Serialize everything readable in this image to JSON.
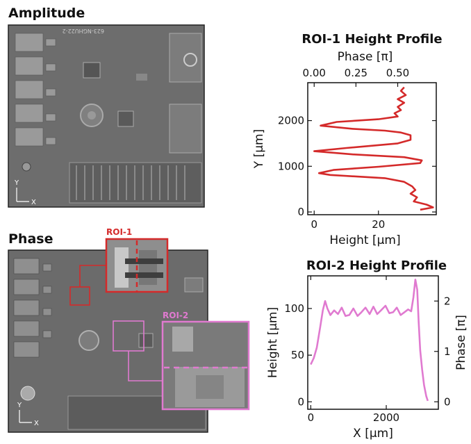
{
  "panels": {
    "amplitude_title": "Amplitude",
    "phase_title": "Phase",
    "axis_y": "Y",
    "axis_x": "X",
    "amplitude_chip_text": "623-NGHU22-2",
    "roi1_label": "ROI-1",
    "roi2_label": "ROI-2"
  },
  "colors": {
    "roi1": "#d42a2a",
    "roi2": "#e07ad0"
  },
  "chart_data": [
    {
      "type": "line",
      "title": "ROI-1 Height Profile",
      "xlabel": "Height [µm]",
      "ylabel": "Y [µm]",
      "x2label": "Phase [π]",
      "xlim": [
        -2,
        38
      ],
      "ylim": [
        -60,
        2830
      ],
      "xticks": [
        0,
        20
      ],
      "x2ticks": [
        {
          "label": "0.00",
          "height": 0
        },
        {
          "label": "0.25",
          "height": 13
        },
        {
          "label": "0.50",
          "height": 26
        }
      ],
      "yticks": [
        0,
        1000,
        2000
      ],
      "color": "#d42a2a",
      "points": [
        [
          33,
          50
        ],
        [
          37,
          100
        ],
        [
          35,
          160
        ],
        [
          31,
          230
        ],
        [
          32,
          320
        ],
        [
          30,
          400
        ],
        [
          31.5,
          480
        ],
        [
          30.5,
          560
        ],
        [
          28,
          660
        ],
        [
          22,
          740
        ],
        [
          5,
          810
        ],
        [
          1.5,
          850
        ],
        [
          6,
          920
        ],
        [
          20,
          990
        ],
        [
          33,
          1070
        ],
        [
          33.5,
          1130
        ],
        [
          28,
          1200
        ],
        [
          12,
          1260
        ],
        [
          0,
          1330
        ],
        [
          10,
          1400
        ],
        [
          26,
          1500
        ],
        [
          30,
          1580
        ],
        [
          30,
          1680
        ],
        [
          27,
          1740
        ],
        [
          22,
          1780
        ],
        [
          12,
          1820
        ],
        [
          2,
          1890
        ],
        [
          7,
          1970
        ],
        [
          20,
          2030
        ],
        [
          26,
          2090
        ],
        [
          25,
          2160
        ],
        [
          27,
          2230
        ],
        [
          26,
          2300
        ],
        [
          28,
          2390
        ],
        [
          26,
          2470
        ],
        [
          28.5,
          2560
        ],
        [
          27,
          2650
        ],
        [
          28,
          2730
        ]
      ]
    },
    {
      "type": "line",
      "title": "ROI-2 Height Profile",
      "xlabel": "X [µm]",
      "ylabel": "Height [µm]",
      "y2label": "Phase [π]",
      "xlim": [
        -80,
        3380
      ],
      "ylim": [
        -8,
        135
      ],
      "xticks": [
        0,
        2000
      ],
      "yticks": [
        0,
        50,
        100
      ],
      "y2ticks": [
        {
          "label": "0",
          "height": 0
        },
        {
          "label": "1",
          "height": 54
        },
        {
          "label": "2",
          "height": 108
        }
      ],
      "color": "#e07ad0",
      "points": [
        [
          0,
          40
        ],
        [
          80,
          47
        ],
        [
          160,
          58
        ],
        [
          250,
          80
        ],
        [
          320,
          98
        ],
        [
          380,
          108
        ],
        [
          440,
          100
        ],
        [
          520,
          93
        ],
        [
          620,
          98
        ],
        [
          720,
          94
        ],
        [
          820,
          101
        ],
        [
          920,
          92
        ],
        [
          1020,
          93
        ],
        [
          1130,
          100
        ],
        [
          1240,
          92
        ],
        [
          1340,
          96
        ],
        [
          1450,
          101
        ],
        [
          1560,
          94
        ],
        [
          1660,
          102
        ],
        [
          1760,
          94
        ],
        [
          1860,
          98
        ],
        [
          1980,
          103
        ],
        [
          2080,
          95
        ],
        [
          2180,
          96
        ],
        [
          2280,
          101
        ],
        [
          2380,
          93
        ],
        [
          2480,
          96
        ],
        [
          2580,
          99
        ],
        [
          2660,
          97
        ],
        [
          2720,
          112
        ],
        [
          2770,
          131
        ],
        [
          2820,
          120
        ],
        [
          2860,
          85
        ],
        [
          2900,
          55
        ],
        [
          2950,
          35
        ],
        [
          3000,
          18
        ],
        [
          3060,
          6
        ],
        [
          3100,
          1
        ]
      ]
    }
  ]
}
